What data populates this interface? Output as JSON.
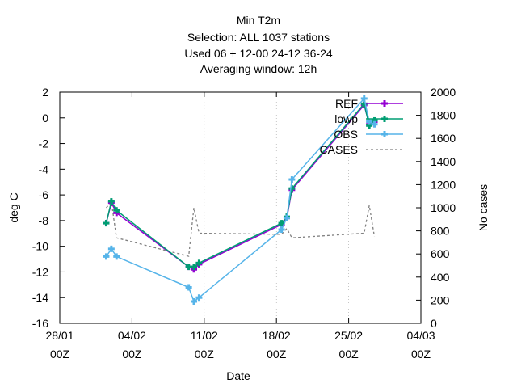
{
  "chart_data": {
    "type": "line",
    "title_lines": [
      "Min T2m",
      "Selection: ALL   1037 stations",
      "Used  06  + 12-00 24-12 36-24",
      "Averaging window: 12h"
    ],
    "xlabel": "Date",
    "ylabel": "deg C",
    "y2label": "No cases",
    "x_ticks": [
      {
        "day": 0,
        "label1": "28/01",
        "label2": "00Z"
      },
      {
        "day": 7,
        "label1": "04/02",
        "label2": "00Z"
      },
      {
        "day": 14,
        "label1": "11/02",
        "label2": "00Z"
      },
      {
        "day": 21,
        "label1": "18/02",
        "label2": "00Z"
      },
      {
        "day": 28,
        "label1": "25/02",
        "label2": "00Z"
      },
      {
        "day": 35,
        "label1": "04/03",
        "label2": "00Z"
      }
    ],
    "xlim": [
      0,
      35
    ],
    "ylim": [
      -16,
      2
    ],
    "y_ticks": [
      2,
      0,
      -2,
      -4,
      -6,
      -8,
      -10,
      -12,
      -14,
      -16
    ],
    "y2lim": [
      0,
      2000
    ],
    "y2_ticks": [
      2000,
      1800,
      1600,
      1400,
      1200,
      1000,
      800,
      600,
      400,
      200,
      0
    ],
    "legend_position": "top-right",
    "series": [
      {
        "name": "REF",
        "color": "#9400d3",
        "axis": "y",
        "marker": "plus",
        "x": [
          4.5,
          5.0,
          5.5,
          12.5,
          13.0,
          13.5,
          21.5,
          22.0,
          22.5,
          29.5,
          30.0,
          30.5
        ],
        "y": [
          -8.2,
          -6.6,
          -7.4,
          -11.6,
          -11.8,
          -11.4,
          -8.3,
          -7.8,
          -5.6,
          1.0,
          -0.5,
          -0.3
        ]
      },
      {
        "name": "lowp",
        "color": "#009e73",
        "axis": "y",
        "marker": "plus",
        "x": [
          4.5,
          5.0,
          5.5,
          12.5,
          13.0,
          13.5,
          21.5,
          22.0,
          22.5,
          29.5,
          30.0,
          30.5
        ],
        "y": [
          -8.2,
          -6.5,
          -7.2,
          -11.6,
          -11.6,
          -11.3,
          -8.2,
          -7.7,
          -5.5,
          1.1,
          -0.6,
          -0.2
        ]
      },
      {
        "name": "OBS",
        "color": "#56b4e9",
        "axis": "y",
        "marker": "plus",
        "x": [
          4.5,
          5.0,
          5.5,
          12.5,
          13.0,
          13.5,
          21.5,
          22.0,
          22.5,
          29.5,
          30.0,
          30.5
        ],
        "y": [
          -10.8,
          -10.2,
          -10.8,
          -13.2,
          -14.3,
          -14.0,
          -8.7,
          -7.8,
          -4.8,
          1.5,
          -0.3,
          -0.5
        ]
      },
      {
        "name": "CASES",
        "color": "#808080",
        "axis": "y2",
        "marker": "none",
        "dashed": true,
        "x": [
          4.5,
          5.0,
          5.5,
          12.5,
          13.0,
          13.5,
          21.5,
          22.0,
          22.5,
          29.5,
          30.0,
          30.5
        ],
        "y": [
          1000,
          1050,
          740,
          580,
          1000,
          780,
          770,
          820,
          740,
          780,
          1020,
          750
        ]
      }
    ]
  }
}
